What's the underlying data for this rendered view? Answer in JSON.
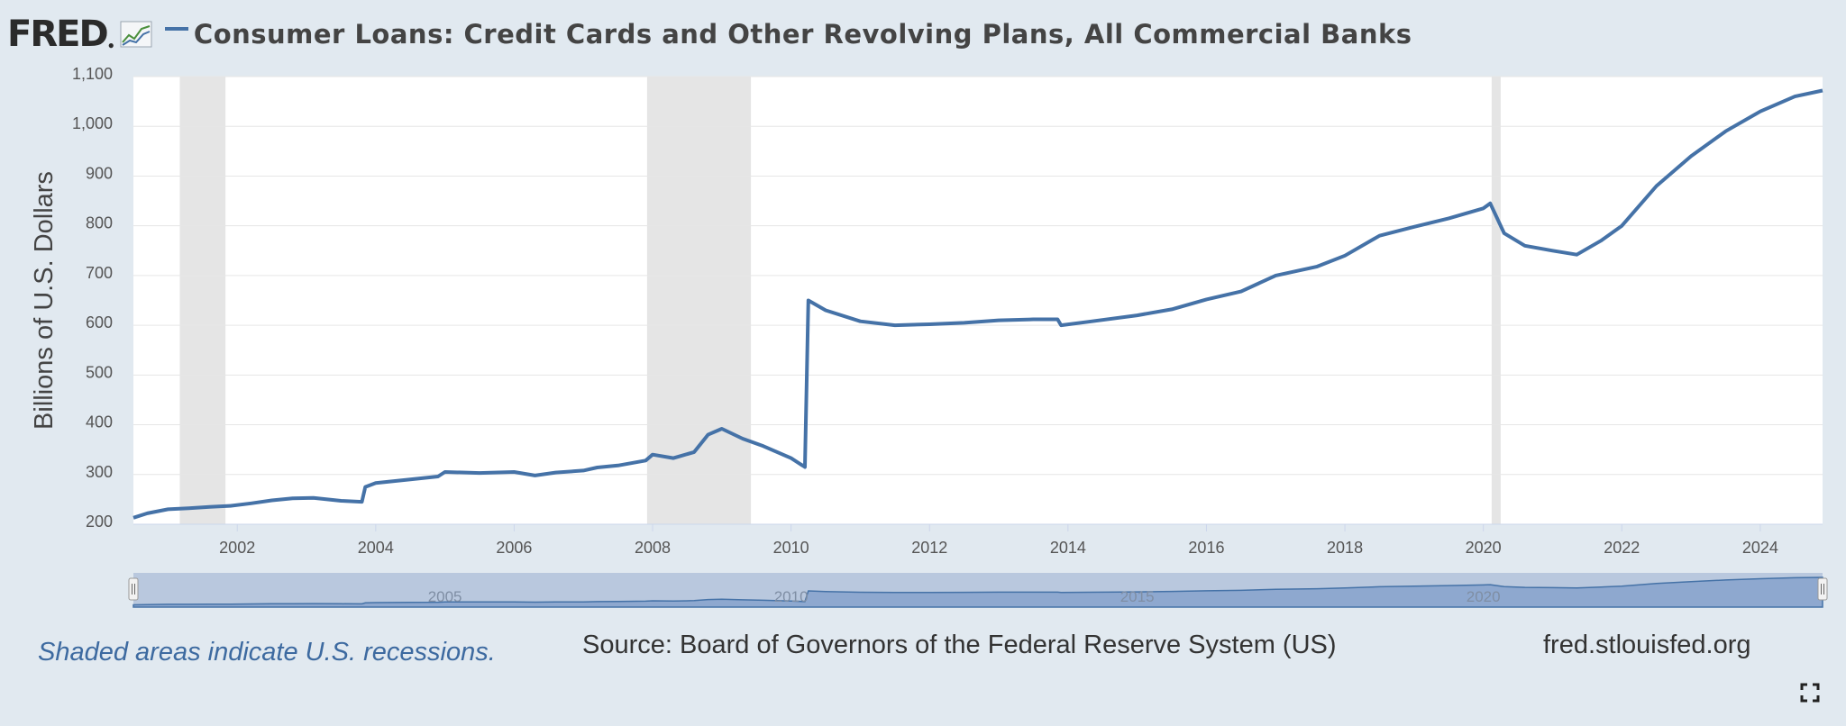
{
  "header": {
    "logo_text": "FRED",
    "title": "Consumer Loans: Credit Cards and Other Revolving Plans, All Commercial Banks",
    "icons": [
      "fred-logo",
      "line-chart-icon",
      "legend-swatch"
    ]
  },
  "chart_data": {
    "type": "line",
    "title": "Consumer Loans: Credit Cards and Other Revolving Plans, All Commercial Banks",
    "ylabel": "Billions of U.S. Dollars",
    "xlabel": "",
    "xlim": [
      2000.5,
      2024.9
    ],
    "ylim": [
      200,
      1100
    ],
    "y_ticks": [
      {
        "value": 200,
        "label": "200"
      },
      {
        "value": 300,
        "label": "300"
      },
      {
        "value": 400,
        "label": "400"
      },
      {
        "value": 500,
        "label": "500"
      },
      {
        "value": 600,
        "label": "600"
      },
      {
        "value": 700,
        "label": "700"
      },
      {
        "value": 800,
        "label": "800"
      },
      {
        "value": 900,
        "label": "900"
      },
      {
        "value": 1000,
        "label": "1,000"
      },
      {
        "value": 1100,
        "label": "1,100"
      }
    ],
    "x_ticks": [
      {
        "value": 2002,
        "label": "2002"
      },
      {
        "value": 2004,
        "label": "2004"
      },
      {
        "value": 2006,
        "label": "2006"
      },
      {
        "value": 2008,
        "label": "2008"
      },
      {
        "value": 2010,
        "label": "2010"
      },
      {
        "value": 2012,
        "label": "2012"
      },
      {
        "value": 2014,
        "label": "2014"
      },
      {
        "value": 2016,
        "label": "2016"
      },
      {
        "value": 2018,
        "label": "2018"
      },
      {
        "value": 2020,
        "label": "2020"
      },
      {
        "value": 2022,
        "label": "2022"
      },
      {
        "value": 2024,
        "label": "2024"
      }
    ],
    "grid": true,
    "recessions": [
      [
        2001.17,
        2001.83
      ],
      [
        2007.92,
        2009.42
      ],
      [
        2020.12,
        2020.25
      ]
    ],
    "series": [
      {
        "color": "#4572a7",
        "x": [
          2000.5,
          2000.7,
          2001.0,
          2001.3,
          2001.6,
          2001.9,
          2002.2,
          2002.5,
          2002.8,
          2003.1,
          2003.5,
          2003.8,
          2003.85,
          2004.0,
          2004.5,
          2004.9,
          2005.0,
          2005.5,
          2006.0,
          2006.3,
          2006.6,
          2007.0,
          2007.2,
          2007.5,
          2007.9,
          2008.0,
          2008.3,
          2008.6,
          2008.8,
          2009.0,
          2009.3,
          2009.6,
          2010.0,
          2010.2,
          2010.25,
          2010.5,
          2011.0,
          2011.5,
          2012.0,
          2012.5,
          2013.0,
          2013.5,
          2013.85,
          2013.9,
          2014.3,
          2015.0,
          2015.5,
          2016.0,
          2016.5,
          2017.0,
          2017.6,
          2018.0,
          2018.5,
          2019.0,
          2019.5,
          2020.0,
          2020.1,
          2020.3,
          2020.6,
          2021.0,
          2021.35,
          2021.7,
          2022.0,
          2022.5,
          2023.0,
          2023.5,
          2024.0,
          2024.5,
          2024.9
        ],
        "y": [
          213,
          222,
          230,
          232,
          235,
          237,
          242,
          248,
          252,
          253,
          247,
          245,
          275,
          283,
          290,
          296,
          305,
          303,
          305,
          298,
          304,
          308,
          314,
          318,
          328,
          340,
          333,
          345,
          380,
          392,
          372,
          357,
          333,
          315,
          650,
          630,
          608,
          600,
          602,
          605,
          610,
          612,
          612,
          600,
          607,
          620,
          632,
          652,
          668,
          700,
          718,
          740,
          780,
          798,
          815,
          835,
          845,
          785,
          760,
          750,
          742,
          770,
          800,
          880,
          940,
          990,
          1030,
          1060,
          1072
        ]
      }
    ]
  },
  "navigator": {
    "labels": [
      "2005",
      "2010",
      "2015",
      "2020"
    ]
  },
  "footer": {
    "recession_note": "Shaded areas indicate U.S. recessions.",
    "source": "Source: Board of Governors of the Federal Reserve System (US)",
    "site": "fred.stlouisfed.org"
  }
}
